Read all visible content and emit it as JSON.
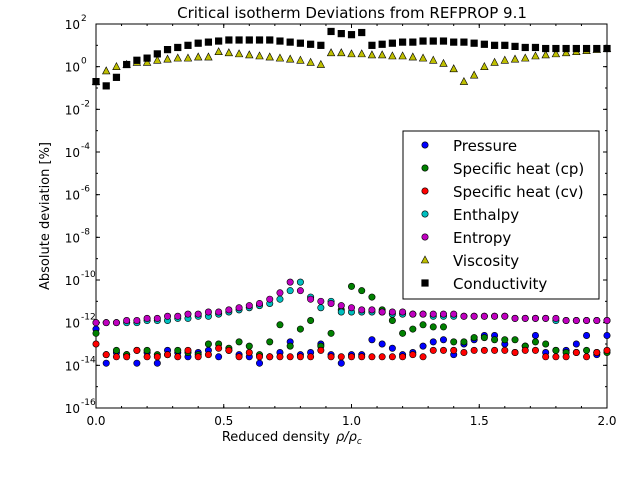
{
  "chart_data": {
    "type": "scatter",
    "title": "Critical isotherm Deviations from REFPROP 9.1",
    "xlabel": "Reduced density",
    "xlabel_math": "ρ/ρ",
    "xlabel_sub": "c",
    "ylabel": "Absolute deviation [%]",
    "xlim": [
      0.0,
      2.0
    ],
    "ylim_log10": [
      -16,
      2
    ],
    "yscale": "log",
    "grid": false,
    "legend_position": "center-right",
    "x_ticks": [
      "0.0",
      "0.5",
      "1.0",
      "1.5",
      "2.0"
    ],
    "y_tick_exponents": [
      "2",
      "0",
      "-2",
      "-4",
      "-6",
      "-8",
      "-10",
      "-12",
      "-14",
      "-16"
    ],
    "x": [
      0.0,
      0.04,
      0.08,
      0.12,
      0.16,
      0.2,
      0.24,
      0.28,
      0.32,
      0.36,
      0.4,
      0.44,
      0.48,
      0.52,
      0.56,
      0.6,
      0.64,
      0.68,
      0.72,
      0.76,
      0.8,
      0.84,
      0.88,
      0.92,
      0.96,
      1.0,
      1.04,
      1.08,
      1.12,
      1.16,
      1.2,
      1.24,
      1.28,
      1.32,
      1.36,
      1.4,
      1.44,
      1.48,
      1.52,
      1.56,
      1.6,
      1.64,
      1.68,
      1.72,
      1.76,
      1.8,
      1.84,
      1.88,
      1.92,
      1.96,
      2.0
    ],
    "series": [
      {
        "name": "Pressure",
        "color": "#0000ff",
        "marker": "circle",
        "log10_values": [
          -12.3,
          -13.9,
          -13.4,
          -13.5,
          -13.9,
          -13.4,
          -13.9,
          -13.3,
          -13.4,
          -13.6,
          -13.4,
          -13.3,
          -13.6,
          -13.3,
          -13.5,
          -13.6,
          -13.9,
          -13.6,
          -13.4,
          -12.9,
          -13.5,
          -13.4,
          -13.0,
          -13.5,
          -13.9,
          -13.5,
          -13.5,
          -12.8,
          -13.0,
          -13.2,
          -13.5,
          -13.4,
          -13.1,
          -12.9,
          -12.8,
          -13.5,
          -13.0,
          -12.8,
          -12.6,
          -12.6,
          -13.0,
          -13.4,
          -13.1,
          -12.6,
          -13.4,
          -13.3,
          -13.3,
          -13.0,
          -12.6,
          -13.5,
          -12.6
        ]
      },
      {
        "name": "Specific heat (cp)",
        "color": "#008000",
        "marker": "circle",
        "log10_values": [
          -12.5,
          -13.5,
          -13.3,
          -13.5,
          -13.3,
          -13.3,
          -13.5,
          -13.5,
          -13.3,
          -13.4,
          -13.5,
          -13.0,
          -13.0,
          -13.2,
          -12.9,
          -13.1,
          -13.5,
          -12.9,
          -12.1,
          -13.1,
          -12.3,
          -11.9,
          -13.1,
          -12.5,
          -11.4,
          -10.3,
          -10.5,
          -10.8,
          -11.4,
          -11.9,
          -12.5,
          -12.3,
          -12.1,
          -12.2,
          -12.2,
          -12.9,
          -12.9,
          -12.7,
          -12.7,
          -12.8,
          -12.8,
          -12.8,
          -13.1,
          -12.9,
          -13.0,
          -13.3,
          -13.4,
          -13.4,
          -13.3,
          -13.4,
          -13.4
        ]
      },
      {
        "name": "Specific heat (cv)",
        "color": "#ff0000",
        "marker": "circle",
        "log10_values": [
          -13.0,
          -13.5,
          -13.6,
          -13.6,
          -13.3,
          -13.6,
          -13.6,
          -13.5,
          -13.6,
          -13.3,
          -13.6,
          -13.5,
          -13.2,
          -13.3,
          -13.6,
          -13.4,
          -13.6,
          -13.6,
          -13.6,
          -13.6,
          -13.6,
          -13.6,
          -13.3,
          -13.6,
          -13.6,
          -13.6,
          -13.6,
          -13.6,
          -13.6,
          -13.6,
          -13.6,
          -13.5,
          -13.6,
          -13.3,
          -13.3,
          -13.3,
          -13.4,
          -13.3,
          -13.3,
          -13.3,
          -13.3,
          -13.4,
          -13.3,
          -13.3,
          -13.6,
          -13.6,
          -13.6,
          -13.4,
          -13.6,
          -13.4,
          -13.3
        ]
      },
      {
        "name": "Enthalpy",
        "color": "#00bfbf",
        "marker": "circle",
        "log10_values": [
          -12.0,
          -12.0,
          -12.0,
          -12.0,
          -12.0,
          -11.9,
          -11.9,
          -11.9,
          -11.8,
          -11.8,
          -11.7,
          -11.7,
          -11.6,
          -11.5,
          -11.4,
          -11.3,
          -11.2,
          -11.1,
          -10.9,
          -10.5,
          -10.1,
          -10.8,
          -11.3,
          -11.0,
          -11.5,
          -11.5,
          -11.5,
          -11.5,
          -11.5,
          -11.6,
          -11.6,
          -11.6,
          -11.6,
          -11.7,
          -11.7,
          -11.7,
          -11.7,
          -11.7,
          -11.7,
          -11.7,
          -11.7,
          -11.8,
          -11.8,
          -11.8,
          -11.8,
          -11.9,
          -11.9,
          -11.9,
          -11.9,
          -11.9,
          -11.9
        ]
      },
      {
        "name": "Entropy",
        "color": "#bf00bf",
        "marker": "circle",
        "log10_values": [
          -12.0,
          -12.0,
          -12.0,
          -11.9,
          -11.9,
          -11.8,
          -11.8,
          -11.7,
          -11.7,
          -11.6,
          -11.6,
          -11.5,
          -11.5,
          -11.4,
          -11.3,
          -11.2,
          -11.1,
          -10.9,
          -10.6,
          -10.1,
          -10.5,
          -10.9,
          -11.0,
          -11.1,
          -11.2,
          -11.3,
          -11.4,
          -11.4,
          -11.5,
          -11.5,
          -11.5,
          -11.6,
          -11.6,
          -11.6,
          -11.6,
          -11.6,
          -11.7,
          -11.7,
          -11.7,
          -11.7,
          -11.7,
          -11.8,
          -11.8,
          -11.8,
          -11.8,
          -11.8,
          -11.9,
          -11.9,
          -11.9,
          -11.9,
          -11.9
        ]
      },
      {
        "name": "Viscosity",
        "color": "#bfbf00",
        "marker": "triangle",
        "log10_values": [
          -0.7,
          -0.2,
          0.0,
          0.1,
          0.2,
          0.2,
          0.3,
          0.35,
          0.4,
          0.4,
          0.45,
          0.45,
          0.7,
          0.65,
          0.6,
          0.55,
          0.5,
          0.45,
          0.4,
          0.35,
          0.3,
          0.2,
          0.1,
          0.65,
          0.65,
          0.6,
          0.6,
          0.55,
          0.55,
          0.5,
          0.5,
          0.45,
          0.4,
          0.3,
          0.15,
          -0.1,
          -0.7,
          -0.4,
          0.0,
          0.2,
          0.3,
          0.35,
          0.4,
          0.5,
          0.55,
          0.6,
          0.65,
          0.7,
          0.75,
          0.8,
          0.85
        ]
      },
      {
        "name": "Conductivity",
        "color": "#000000",
        "marker": "square",
        "log10_values": [
          -0.7,
          -0.9,
          -0.5,
          0.1,
          0.3,
          0.4,
          0.6,
          0.8,
          0.9,
          1.0,
          1.1,
          1.15,
          1.2,
          1.25,
          1.25,
          1.25,
          1.25,
          1.25,
          1.2,
          1.15,
          1.1,
          1.05,
          1.0,
          1.65,
          1.55,
          1.5,
          1.6,
          1.0,
          1.05,
          1.1,
          1.15,
          1.15,
          1.2,
          1.2,
          1.2,
          1.15,
          1.15,
          1.1,
          1.05,
          1.0,
          1.0,
          0.95,
          0.9,
          0.9,
          0.85,
          0.85,
          0.85,
          0.85,
          0.85,
          0.85,
          0.85
        ]
      }
    ]
  }
}
